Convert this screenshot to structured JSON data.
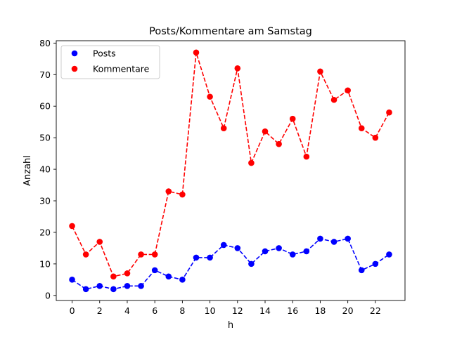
{
  "chart_data": {
    "type": "line",
    "title": "Posts/Kommentare am Samstag",
    "xlabel": "h",
    "ylabel": "Anzahl",
    "x": [
      0,
      1,
      2,
      3,
      4,
      5,
      6,
      7,
      8,
      9,
      10,
      11,
      12,
      13,
      14,
      15,
      16,
      17,
      18,
      19,
      20,
      21,
      22,
      23
    ],
    "xlim": [
      -1.15,
      24.15
    ],
    "ylim": [
      -1.6,
      80.75
    ],
    "xticks": [
      0,
      2,
      4,
      6,
      8,
      10,
      12,
      14,
      16,
      18,
      20,
      22
    ],
    "yticks": [
      0,
      10,
      20,
      30,
      40,
      50,
      60,
      70,
      80
    ],
    "grid": false,
    "legend_position": "upper-left",
    "series": [
      {
        "name": "Posts",
        "color": "#0000ff",
        "linestyle": "dashed",
        "marker": "circle",
        "values": [
          5,
          2,
          3,
          2,
          3,
          3,
          8,
          6,
          5,
          12,
          12,
          16,
          15,
          10,
          14,
          15,
          13,
          14,
          18,
          17,
          18,
          8,
          10,
          13
        ]
      },
      {
        "name": "Kommentare",
        "color": "#ff0000",
        "linestyle": "dashed",
        "marker": "circle",
        "values": [
          22,
          13,
          17,
          6,
          7,
          13,
          13,
          33,
          32,
          77,
          63,
          53,
          72,
          42,
          52,
          48,
          56,
          44,
          71,
          62,
          65,
          53,
          50,
          58
        ]
      }
    ]
  }
}
